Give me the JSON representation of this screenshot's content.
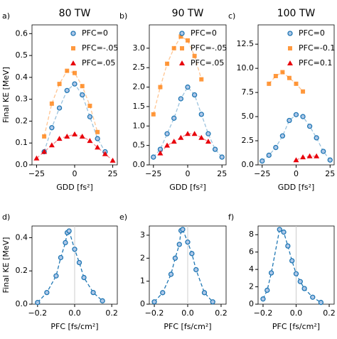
{
  "chart_data": [
    {
      "type": "line",
      "panel_label": "a)",
      "title": "80 TW",
      "xlabel": "GDD [fs²]",
      "ylabel": "Final KE [MeV]",
      "x": [
        -25,
        -20,
        -15,
        -10,
        -5,
        0,
        5,
        10,
        15,
        20,
        25
      ],
      "series": [
        {
          "name": "PFC=0",
          "color": "#1f77b4",
          "marker": "circle",
          "values": [
            null,
            0.06,
            0.17,
            0.26,
            0.34,
            0.37,
            0.32,
            0.22,
            0.12,
            0.06,
            null
          ]
        },
        {
          "name": "PFC=-.05",
          "color": "#ff7f0e",
          "marker": "square",
          "values": [
            null,
            0.13,
            0.28,
            0.37,
            0.43,
            0.42,
            0.36,
            0.27,
            0.15,
            null,
            null
          ]
        },
        {
          "name": "PFC=.05",
          "color": "#e8000b",
          "marker": "triangle",
          "values": [
            0.03,
            0.06,
            0.09,
            0.12,
            0.13,
            0.14,
            0.13,
            0.11,
            0.08,
            0.05,
            0.02
          ]
        }
      ],
      "xlim": [
        -28,
        28
      ],
      "ylim": [
        0,
        0.64
      ],
      "xticks": [
        {
          "value": -25,
          "label": "−25"
        },
        0,
        25
      ],
      "yticks": [
        {
          "value": 0,
          "label": "0.0"
        },
        0.1,
        0.2,
        0.3,
        0.4,
        0.5,
        0.6
      ],
      "legend": "upper right"
    },
    {
      "type": "line",
      "panel_label": "b)",
      "title": "90 TW",
      "xlabel": "GDD [fs²]",
      "x": [
        -25,
        -20,
        -15,
        -10,
        -5,
        0,
        5,
        10,
        15,
        20,
        25
      ],
      "series": [
        {
          "name": "PFC=0",
          "color": "#1f77b4",
          "marker": "circle",
          "values": [
            0.2,
            0.4,
            0.8,
            1.2,
            1.7,
            2.0,
            1.8,
            1.3,
            0.8,
            0.4,
            0.2
          ]
        },
        {
          "name": "PFC=-.05",
          "color": "#ff7f0e",
          "marker": "square",
          "values": [
            1.3,
            2.0,
            2.6,
            3.0,
            3.3,
            3.2,
            2.8,
            2.2,
            null,
            null,
            null
          ]
        },
        {
          "name": "PFC=.05",
          "color": "#e8000b",
          "marker": "triangle",
          "values": [
            null,
            0.3,
            0.5,
            0.6,
            0.7,
            0.8,
            0.8,
            0.7,
            0.6,
            null,
            null
          ]
        }
      ],
      "xlim": [
        -28,
        28
      ],
      "ylim": [
        0,
        3.6
      ],
      "xticks": [
        {
          "value": -25,
          "label": "−25"
        },
        0,
        25
      ],
      "yticks": [
        {
          "value": 0,
          "label": "0.0"
        },
        0.5,
        {
          "value": 1,
          "label": "1.0"
        },
        1.5,
        {
          "value": 2,
          "label": "2.0"
        },
        2.5,
        {
          "value": 3,
          "label": "3.0"
        }
      ],
      "legend": "upper right"
    },
    {
      "type": "line",
      "panel_label": "c)",
      "title": "100 TW",
      "xlabel": "GDD [fs²]",
      "x": [
        -25,
        -20,
        -15,
        -10,
        -5,
        0,
        5,
        10,
        15,
        20,
        25
      ],
      "series": [
        {
          "name": "PFC=0",
          "color": "#1f77b4",
          "marker": "circle",
          "values": [
            0.4,
            1.0,
            1.8,
            3.0,
            4.6,
            5.2,
            5.0,
            4.0,
            2.8,
            1.4,
            0.5
          ]
        },
        {
          "name": "PFC=-0.1",
          "color": "#ff7f0e",
          "marker": "square",
          "values": [
            null,
            8.4,
            9.2,
            9.6,
            9.0,
            8.4,
            7.6,
            null,
            null,
            null,
            null
          ]
        },
        {
          "name": "PFC=0.1",
          "color": "#e8000b",
          "marker": "triangle",
          "values": [
            null,
            null,
            null,
            null,
            null,
            0.5,
            0.8,
            0.9,
            0.9,
            null,
            null
          ]
        }
      ],
      "xlim": [
        -28,
        28
      ],
      "ylim": [
        0,
        14.5
      ],
      "xticks": [
        {
          "value": -25,
          "label": "−25"
        },
        0,
        25
      ],
      "yticks": [
        {
          "value": 0,
          "label": "0.0"
        },
        2.5,
        {
          "value": 5,
          "label": "5.0"
        },
        7.5,
        {
          "value": 10,
          "label": "10.0"
        },
        12.5
      ],
      "legend": "upper right"
    },
    {
      "type": "line",
      "panel_label": "d)",
      "xlabel": "PFC [fs/cm²]",
      "ylabel": "Final KE [MeV]",
      "x": [
        -0.2,
        -0.15,
        -0.1,
        -0.075,
        -0.05,
        -0.04,
        -0.03,
        0,
        0.025,
        0.05,
        0.1,
        0.15
      ],
      "series": [
        {
          "color": "#1f77b4",
          "marker": "circle",
          "values": [
            0.01,
            0.07,
            0.17,
            0.28,
            0.37,
            0.43,
            0.44,
            0.33,
            0.25,
            0.16,
            0.07,
            0.02
          ]
        }
      ],
      "xlim": [
        -0.23,
        0.23
      ],
      "ylim": [
        0,
        0.47
      ],
      "xticks": [
        {
          "value": -0.2,
          "label": "−0.2"
        },
        {
          "value": 0,
          "label": "0.0"
        },
        0.2
      ],
      "yticks": [
        {
          "value": 0,
          "label": "0.0"
        },
        0.2,
        0.4
      ]
    },
    {
      "type": "line",
      "panel_label": "e)",
      "xlabel": "PFC [fs/cm²]",
      "x": [
        -0.2,
        -0.15,
        -0.1,
        -0.075,
        -0.05,
        -0.04,
        -0.03,
        0,
        0.025,
        0.05,
        0.1,
        0.15
      ],
      "series": [
        {
          "color": "#1f77b4",
          "marker": "circle",
          "values": [
            0.1,
            0.5,
            1.3,
            2.0,
            2.6,
            3.2,
            3.25,
            2.7,
            2.2,
            1.5,
            0.5,
            0.1
          ]
        }
      ],
      "xlim": [
        -0.23,
        0.23
      ],
      "ylim": [
        0,
        3.4
      ],
      "xticks": [
        {
          "value": -0.2,
          "label": "−0.2"
        },
        {
          "value": 0,
          "label": "0.0"
        },
        0.2
      ],
      "yticks": [
        0,
        1,
        2,
        3
      ]
    },
    {
      "type": "line",
      "panel_label": "f)",
      "xlabel": "PFC [fs/cm²]",
      "x": [
        -0.2,
        -0.175,
        -0.15,
        -0.1,
        -0.075,
        -0.05,
        -0.025,
        0,
        0.025,
        0.05,
        0.1,
        0.15
      ],
      "series": [
        {
          "color": "#1f77b4",
          "marker": "circle",
          "values": [
            0.6,
            1.6,
            3.6,
            8.6,
            8.3,
            6.7,
            5.0,
            3.5,
            2.6,
            1.8,
            0.8,
            0.2
          ]
        }
      ],
      "xlim": [
        -0.23,
        0.23
      ],
      "ylim": [
        0,
        9
      ],
      "xticks": [
        {
          "value": -0.2,
          "label": "−0.2"
        },
        {
          "value": 0,
          "label": "0.0"
        },
        0.2
      ],
      "yticks": [
        0,
        2,
        4,
        6,
        8
      ]
    }
  ]
}
